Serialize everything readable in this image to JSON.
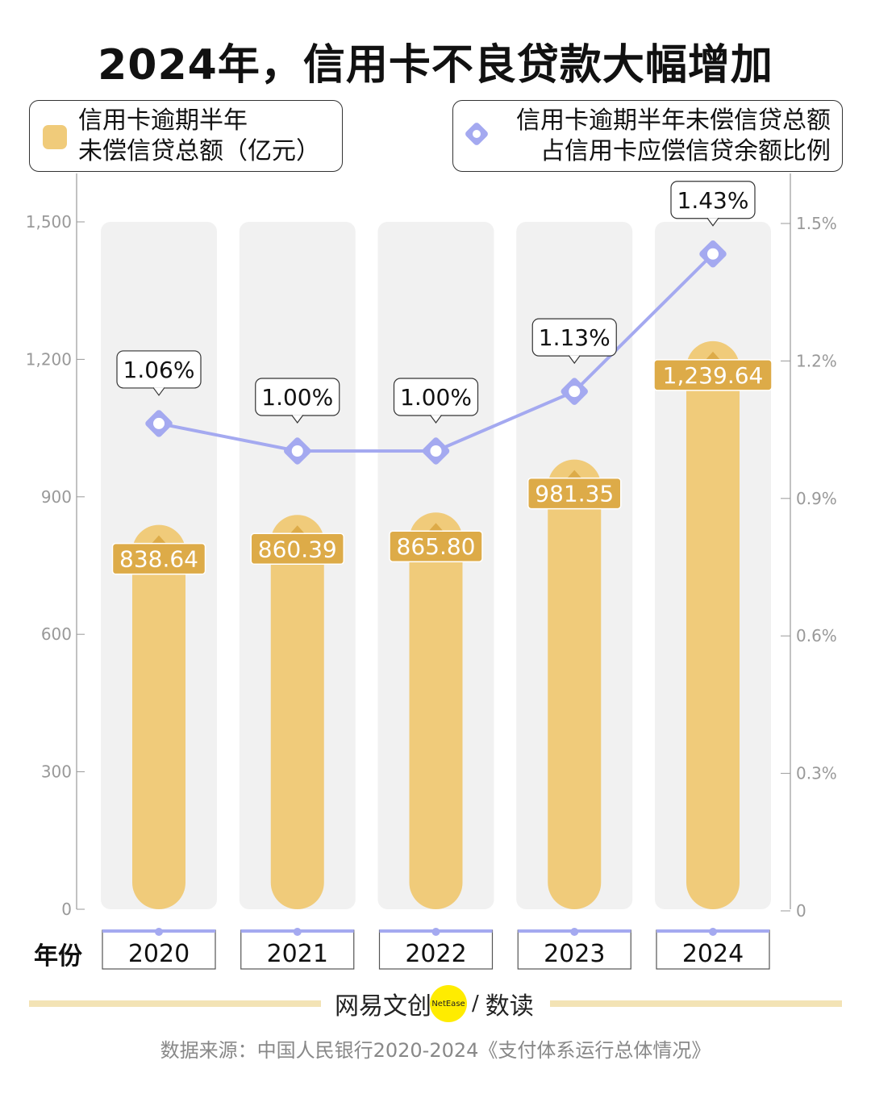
{
  "title": "2024年，信用卡不良贷款大幅增加",
  "legend": {
    "bar_line1": "信用卡逾期半年",
    "bar_line2": "未偿信贷总额（亿元）",
    "line_line1": "信用卡逾期半年未偿信贷总额",
    "line_line2": "占信用卡应偿信贷余额比例"
  },
  "x_axis_label": "年份",
  "colors": {
    "bar": "#f0cb7a",
    "bar_label": "#ddab48",
    "column_bg": "#f1f1f1",
    "line": "#a4a9f0",
    "axis": "#999999"
  },
  "chart_data": {
    "type": "bar",
    "categories": [
      "2020",
      "2021",
      "2022",
      "2023",
      "2024"
    ],
    "series": [
      {
        "name": "信用卡逾期半年未偿信贷总额（亿元）",
        "type": "bar",
        "axis": "left",
        "values": [
          838.64,
          860.39,
          865.8,
          981.35,
          1239.64
        ],
        "labels": [
          "838.64",
          "860.39",
          "865.80",
          "981.35",
          "1,239.64"
        ]
      },
      {
        "name": "信用卡逾期半年未偿信贷总额占信用卡应偿信贷余额比例",
        "type": "line",
        "axis": "right",
        "values": [
          1.06,
          1.0,
          1.0,
          1.13,
          1.43
        ],
        "labels": [
          "1.06%",
          "1.00%",
          "1.00%",
          "1.13%",
          "1.43%"
        ]
      }
    ],
    "left_axis": {
      "ylim": [
        0,
        1500
      ],
      "ticks": [
        "0",
        "300",
        "600",
        "900",
        "1,200",
        "1,500"
      ]
    },
    "right_axis": {
      "ylim": [
        0,
        1.5
      ],
      "ticks": [
        "0",
        "0.3%",
        "0.6%",
        "0.9%",
        "1.2%",
        "1.5%"
      ]
    }
  },
  "footer": {
    "logo_text": "网易文创",
    "logo_badge": "NetEase",
    "logo_sep": "/",
    "logo_sub": "数读",
    "source": "数据来源：中国人民银行2020-2024《支付体系运行总体情况》"
  }
}
